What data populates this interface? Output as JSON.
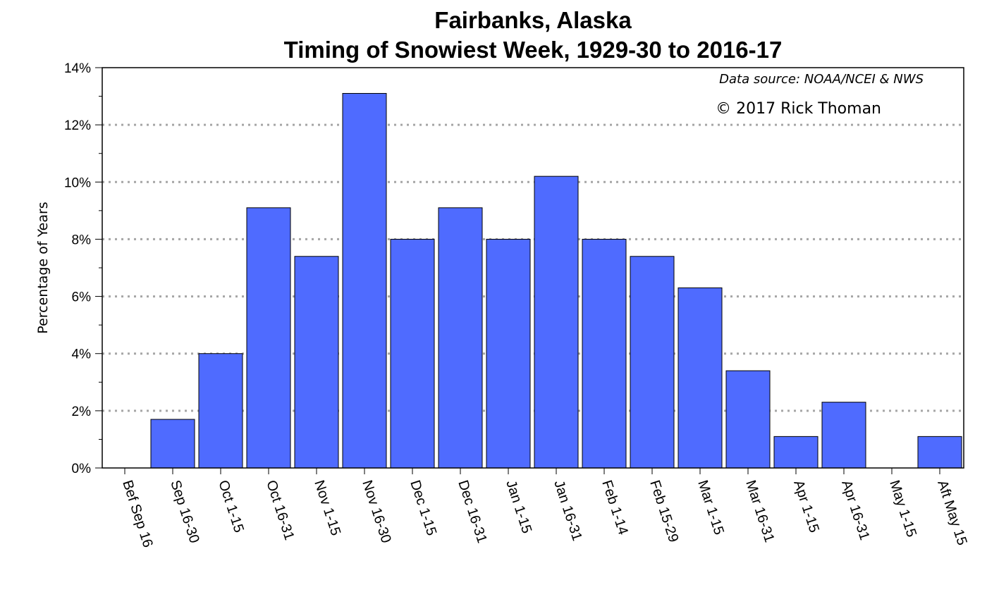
{
  "chart_data": {
    "type": "bar",
    "title": "Fairbanks, Alaska",
    "subtitle": "Timing of Snowiest Week, 1929-30 to 2016-17",
    "xlabel": "",
    "ylabel": "Percentage of Years",
    "annotations": [
      "Data source: NOAA/NCEI & NWS",
      "© 2017 Rick Thoman"
    ],
    "categories": [
      "Bef Sep 16",
      "Sep 16-30",
      "Oct 1-15",
      "Oct 16-31",
      "Nov 1-15",
      "Nov 16-30",
      "Dec 1-15",
      "Dec 16-31",
      "Jan 1-15",
      "Jan 16-31",
      "Feb 1-14",
      "Feb 15-29",
      "Mar 1-15",
      "Mar 16-31",
      "Apr 1-15",
      "Apr 16-31",
      "May 1-15",
      "Aft May 15"
    ],
    "values": [
      null,
      1.7,
      4.0,
      9.1,
      7.4,
      13.1,
      8.0,
      9.1,
      8.0,
      10.2,
      8.0,
      7.4,
      6.3,
      3.4,
      1.1,
      2.3,
      0,
      1.1
    ],
    "unit": "%",
    "ylim": [
      0,
      14
    ],
    "yticks": [
      0,
      2,
      4,
      6,
      8,
      10,
      12,
      14
    ],
    "ytick_labels": [
      "0%",
      "2%",
      "4%",
      "6%",
      "8%",
      "10%",
      "12%",
      "14%"
    ],
    "grid": "horizontal dotted",
    "colors": {
      "bar": "#4f6bff",
      "bar_edge": "#000000",
      "grid": "#a6a6a6"
    }
  }
}
